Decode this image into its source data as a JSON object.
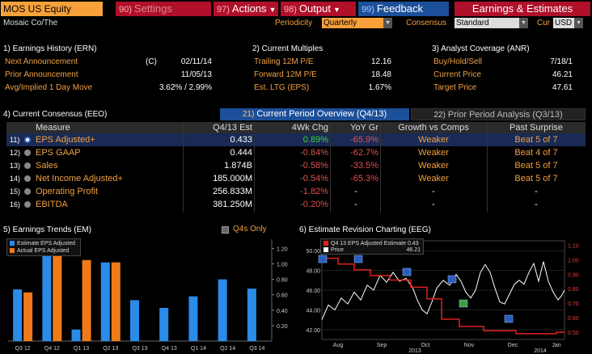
{
  "toolbar": {
    "ticker": "MOS US Equity",
    "settings": {
      "num": "90)",
      "label": "Settings"
    },
    "actions": {
      "num": "97)",
      "label": "Actions"
    },
    "output": {
      "num": "98)",
      "label": "Output"
    },
    "feedback": {
      "num": "99)",
      "label": "Feedback"
    },
    "earnings": {
      "label": "Earnings & Estimates"
    }
  },
  "subheader": {
    "company": "Mosaic Co/The",
    "periodicity_label": "Periodicity",
    "periodicity_value": "Quarterly",
    "consensus_label": "Consensus",
    "consensus_value": "Standard",
    "cur_label": "Cur",
    "cur_value": "USD"
  },
  "earnings_history": {
    "title": "1) Earnings History (ERN)",
    "next_label": "Next Announcement",
    "next_flag": "(C)",
    "next_value": "02/11/14",
    "prior_label": "Prior Announcement",
    "prior_value": "11/05/13",
    "move_label": "Avg/Implied 1 Day Move",
    "move_value": "3.62% / 2.99%"
  },
  "current_multiples": {
    "title": "2) Current Multiples",
    "trailing_label": "Trailing 12M P/E",
    "trailing_value": "12.16",
    "forward_label": "Forward 12M P/E",
    "forward_value": "18.48",
    "ltg_label": "Est. LTG (EPS)",
    "ltg_value": "1.67%"
  },
  "analyst_coverage": {
    "title": "3) Analyst Coverage (ANR)",
    "bhs_label": "Buy/Hold/Sell",
    "bhs_value": "7/18/1",
    "price_label": "Current Price",
    "price_value": "46.21",
    "target_label": "Target Price",
    "target_value": "47.61"
  },
  "consensus": {
    "title": "4) Current Consensus (EEO)",
    "tab_current": {
      "num": "21)",
      "label": "Current Period Overview (Q4/13)"
    },
    "tab_prior": {
      "num": "22)",
      "label": "Prior Period Analysis (Q3/13)"
    },
    "headers": {
      "measure": "Measure",
      "est": "Q4/13 Est",
      "chg": "4Wk Chg",
      "yoy": "YoY Gr",
      "growth": "Growth vs Comps",
      "surprise": "Past Surprise"
    },
    "rows": [
      {
        "idx": "11)",
        "measure": "EPS Adjusted+",
        "est": "0.433",
        "chg": "0.89%",
        "yoy": "-65.9%",
        "growth": "Weaker",
        "surprise": "Beat 5 of 7"
      },
      {
        "idx": "12)",
        "measure": "EPS GAAP",
        "est": "0.444",
        "chg": "-0.84%",
        "yoy": "-62.7%",
        "growth": "Weaker",
        "surprise": "Beat 4 of 7"
      },
      {
        "idx": "13)",
        "measure": "Sales",
        "est": "1.874B",
        "chg": "-0.58%",
        "yoy": "-33.5%",
        "growth": "Weaker",
        "surprise": "Beat 5 of 7"
      },
      {
        "idx": "14)",
        "measure": "Net Income Adjusted+",
        "est": "185.000M",
        "chg": "-0.54%",
        "yoy": "-65.3%",
        "growth": "Weaker",
        "surprise": "Beat 5 of 7"
      },
      {
        "idx": "15)",
        "measure": "Operating Profit",
        "est": "256.833M",
        "chg": "-1.82%",
        "yoy": "-",
        "growth": "-",
        "surprise": "-"
      },
      {
        "idx": "16)",
        "measure": "EBITDA",
        "est": "381.250M",
        "chg": "-0.20%",
        "yoy": "-",
        "growth": "-",
        "surprise": "-"
      }
    ]
  },
  "earnings_trends": {
    "title": "5) Earnings Trends (EM)",
    "q4s_label": "Q4s Only",
    "legend_estimate": "Estimate EPS Adjusted",
    "legend_actual": "Actual EPS Adjusted",
    "colors": {
      "estimate": "#2a8be8",
      "actual": "#f07a1a"
    },
    "y_ticks": [
      "1.20",
      "1.00",
      "0.80",
      "0.60",
      "0.40",
      "0.20"
    ],
    "categories": [
      "Q3 12",
      "Q4 12",
      "Q1 13",
      "Q2 13",
      "Q3 13",
      "Q4 13",
      "Q1 14",
      "Q2 14",
      "Q3 14"
    ],
    "estimate": [
      0.67,
      1.15,
      0.15,
      1.02,
      0.53,
      0.43,
      0.58,
      0.8,
      0.68
    ],
    "actual": [
      0.63,
      1.28,
      1.05,
      1.02,
      null,
      null,
      null,
      null,
      null
    ]
  },
  "revision_chart": {
    "title": "6) Estimate Revision Charting (EEG)",
    "legend_estimate": "Q4 13 EPS Adjusted Estimate",
    "legend_estimate_value": "0.43",
    "legend_price": "Price",
    "legend_price_value": "46.21",
    "left_ticks": [
      "50.00",
      "48.00",
      "46.00",
      "44.00",
      "42.00"
    ],
    "right_ticks": [
      "1.10",
      "1.00",
      "0.90",
      "0.80",
      "0.70",
      "0.60",
      "0.50"
    ],
    "x_labels": [
      "Aug",
      "Sep",
      "Oct",
      "Nov",
      "Dec",
      "Jan"
    ],
    "year_labels": [
      "2013",
      "2014"
    ],
    "colors": {
      "estimate": "#e02020",
      "price": "#ffffff"
    }
  }
}
